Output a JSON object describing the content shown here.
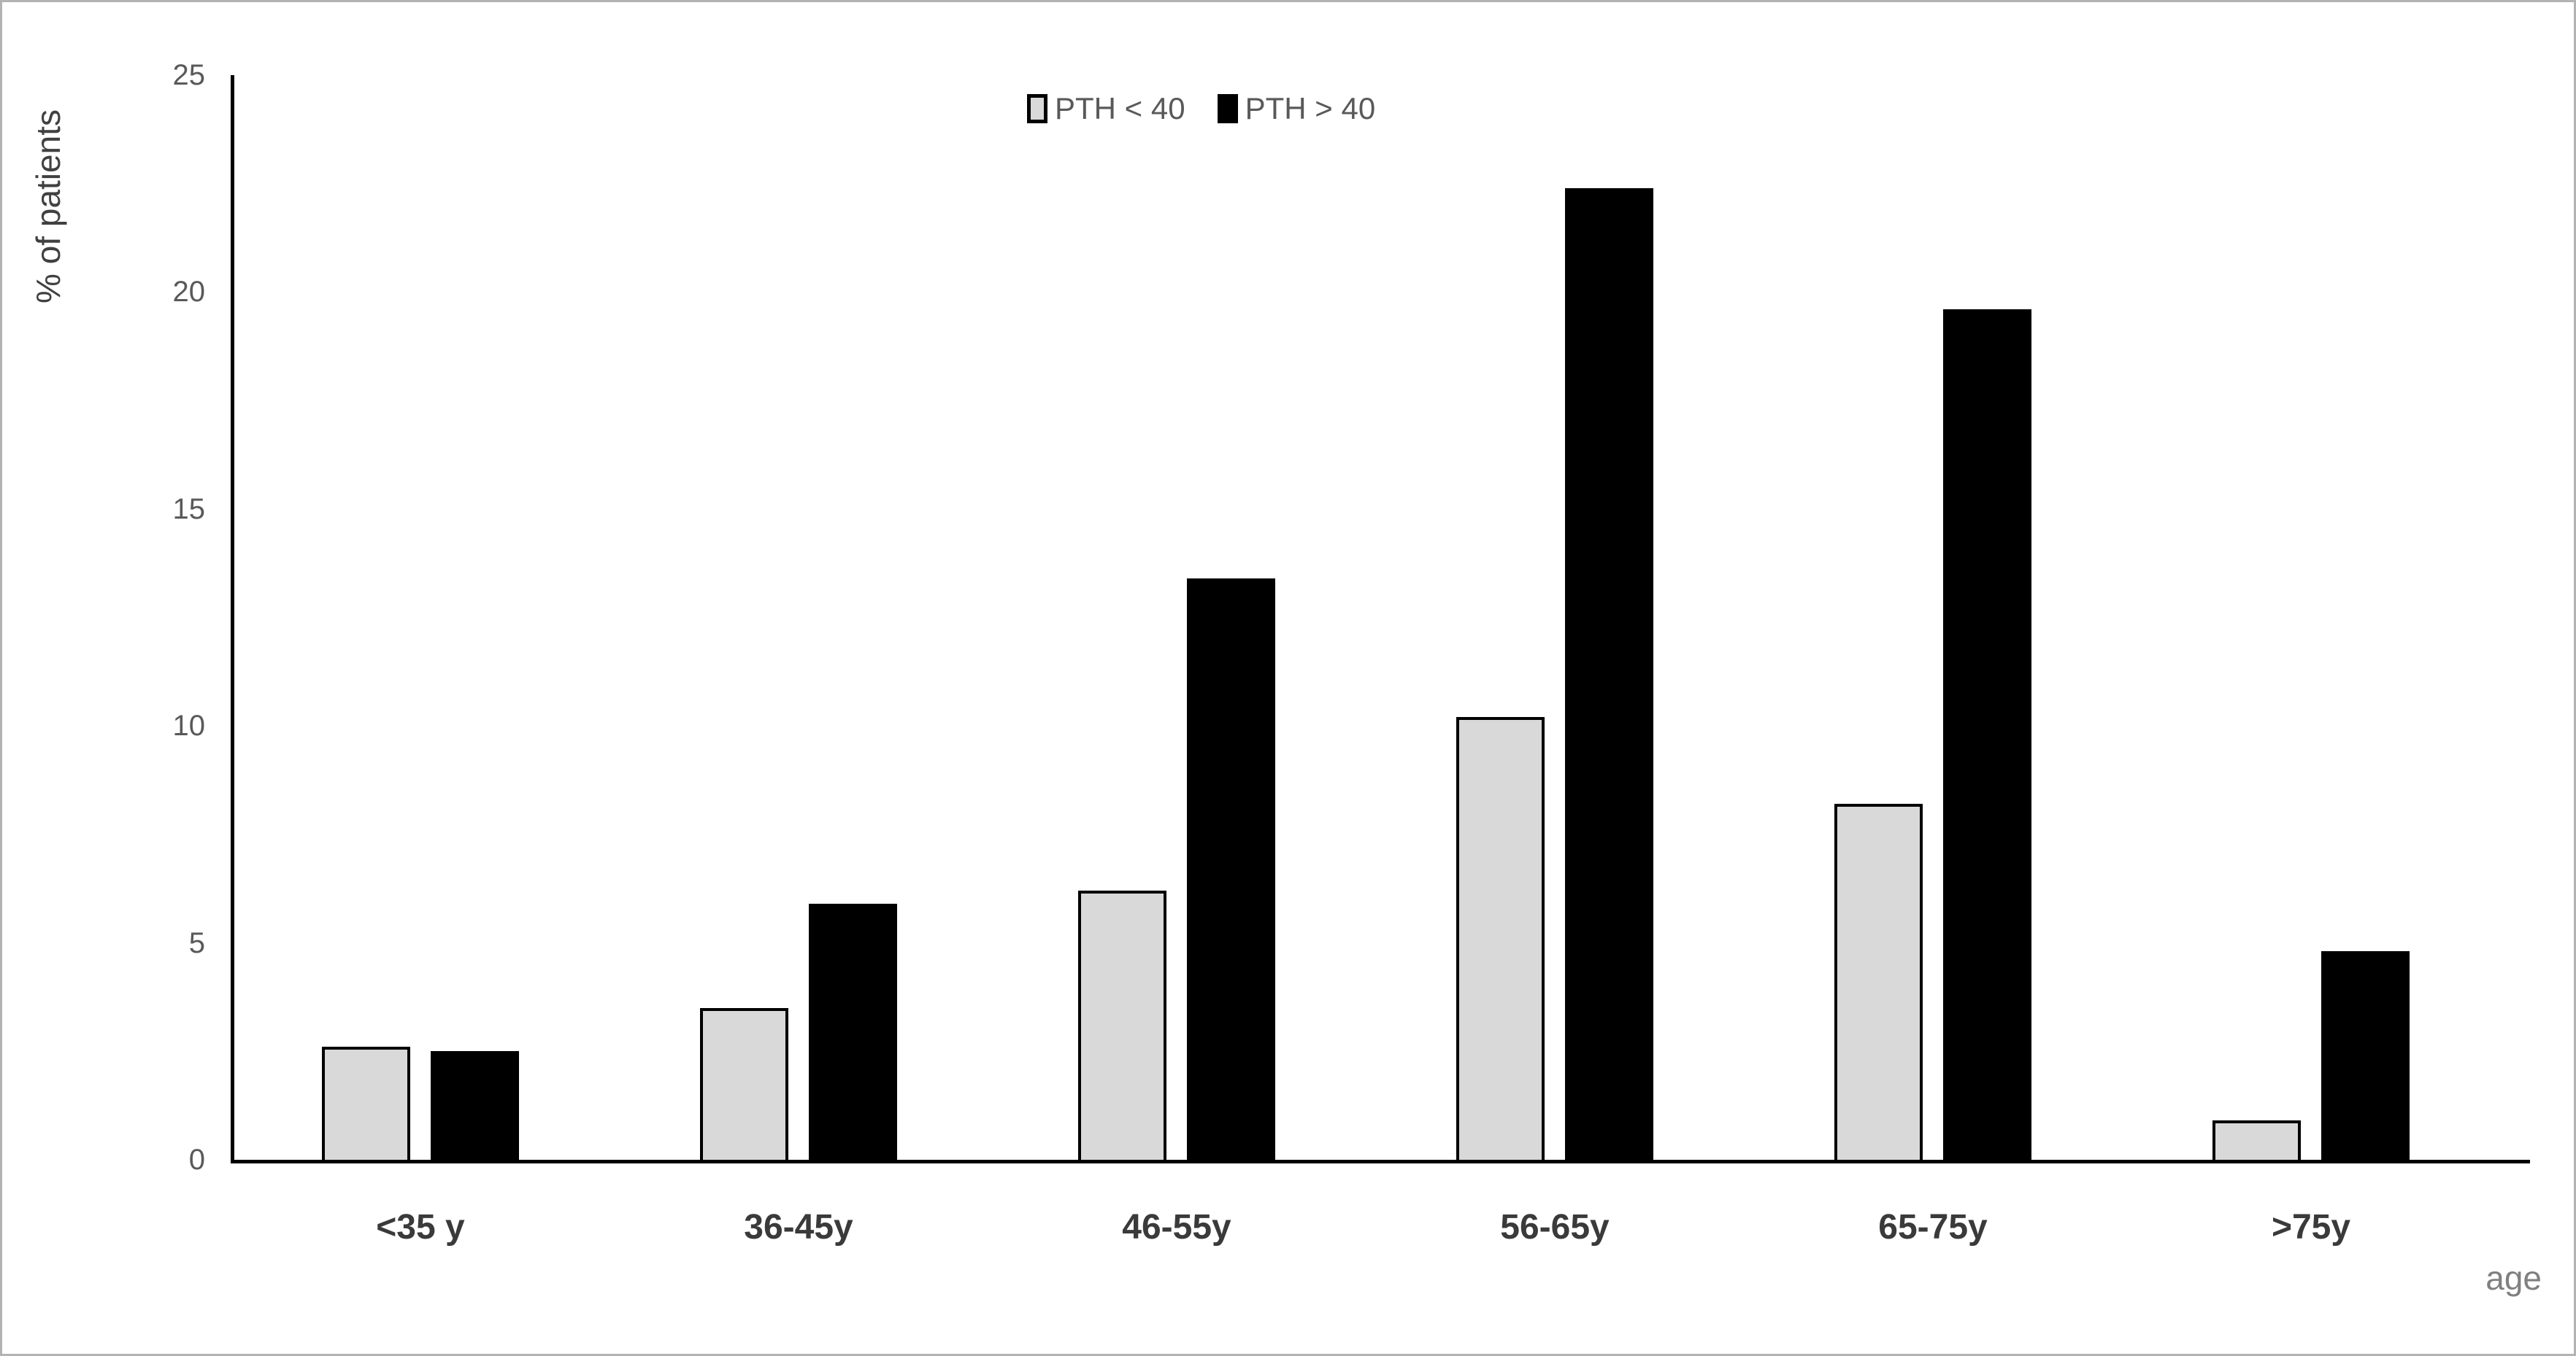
{
  "chart_data": {
    "type": "bar",
    "title": "",
    "categories": [
      "<35 y",
      "36-45y",
      "46-55y",
      "56-65y",
      "65-75y",
      ">75y"
    ],
    "series": [
      {
        "name": "PTH < 40",
        "fill": "#d9d9d9",
        "border": "#000000",
        "values": [
          2.6,
          3.5,
          6.2,
          10.2,
          8.2,
          0.9
        ]
      },
      {
        "name": "PTH > 40",
        "fill": "#000000",
        "border": "#000000",
        "values": [
          2.5,
          5.9,
          13.4,
          22.4,
          19.6,
          4.8
        ]
      }
    ],
    "ylabel": "% of patients",
    "xlabel": "age",
    "ylim": [
      0,
      25
    ],
    "yticks": [
      0,
      5,
      10,
      15,
      20,
      25
    ],
    "grid": false,
    "legend_position": "top-center",
    "colors": {
      "axis": "#000000",
      "tick_text": "#595959",
      "category_text": "#3a3a3a",
      "ylabel_text": "#404040",
      "xlabel_text": "#808080",
      "frame": "#b3b3b3"
    }
  }
}
